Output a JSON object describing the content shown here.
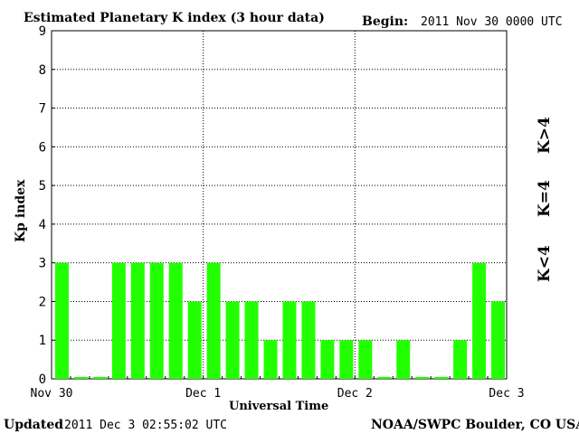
{
  "header": {
    "title": "Estimated Planetary K index (3 hour data)",
    "begin_label": "Begin:",
    "begin_value": "2011 Nov 30 0000 UTC"
  },
  "footer": {
    "updated_label": "Updated",
    "updated_value": "2011 Dec  3 02:55:02 UTC",
    "source": "NOAA/SWPC Boulder, CO USA"
  },
  "legend": {
    "high": {
      "label": "K>4",
      "color": "#ff2020"
    },
    "mid": {
      "label": "K=4",
      "color": "#ffcc00"
    },
    "low": {
      "label": "K<4",
      "color": "#22ff00"
    }
  },
  "chart_data": {
    "type": "bar",
    "title": "Estimated Planetary K index (3 hour data)",
    "xlabel": "Universal Time",
    "ylabel": "Kp index",
    "ylim": [
      0,
      9
    ],
    "yticks": [
      0,
      1,
      2,
      3,
      4,
      5,
      6,
      7,
      8,
      9
    ],
    "xticks": [
      "Nov 30",
      "Dec 1",
      "Dec 2",
      "Dec 3"
    ],
    "grid": true,
    "bar_color": "#22ff00",
    "values": [
      3,
      0.05,
      0.05,
      3,
      3,
      3,
      3,
      2,
      3,
      2,
      2,
      1,
      2,
      2,
      1,
      1,
      1,
      0.05,
      1,
      0.05,
      0.05,
      1,
      3,
      2
    ]
  }
}
